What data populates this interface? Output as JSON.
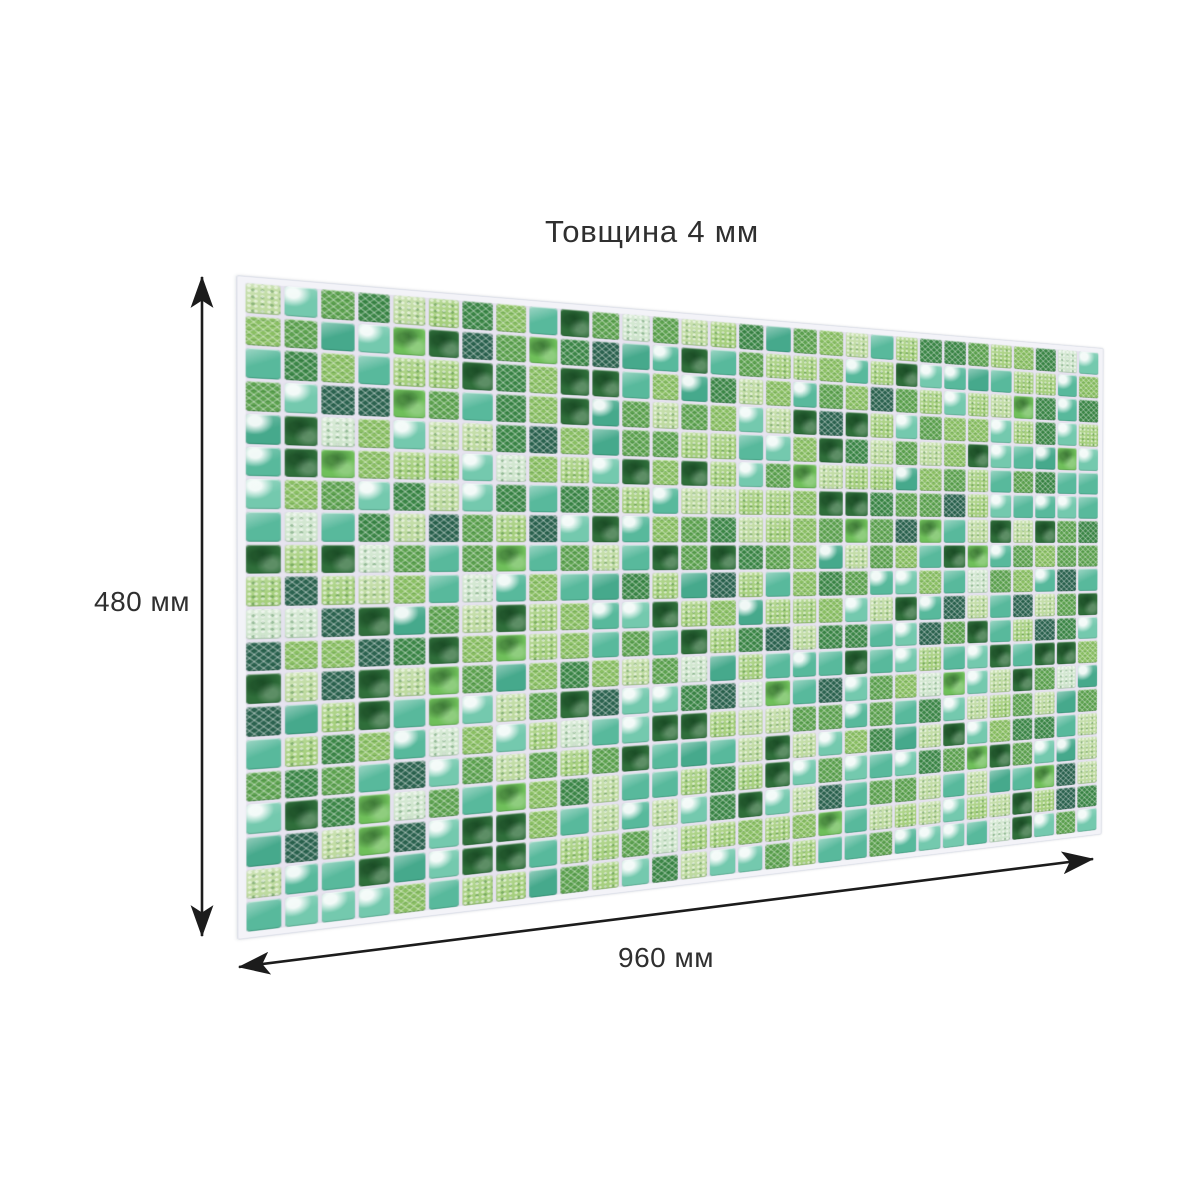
{
  "labels": {
    "thickness": "Товщина 4 мм",
    "height": "480 мм",
    "width": "960 мм"
  },
  "annotation": {
    "arrow_color": "#1c1c1c",
    "text_color": "#2f2f2f"
  },
  "panel": {
    "grid": {
      "cols": 30,
      "rows": 20
    },
    "seed": 20240407,
    "grout_color": "#e6e3ef",
    "substrate_color": "#f3f3f8",
    "palette": [
      {
        "name": "aqua-glass-light",
        "color": "#74c9ae",
        "pattern": "glare",
        "weight": 10
      },
      {
        "name": "aqua-glass",
        "color": "#58b99c",
        "pattern": "gloss",
        "weight": 12
      },
      {
        "name": "teal-glass-deep",
        "color": "#46a98c",
        "pattern": "gloss",
        "weight": 5
      },
      {
        "name": "lime-speckle",
        "color": "#a6cf7e",
        "pattern": "speckle",
        "weight": 14
      },
      {
        "name": "green-lattice",
        "color": "#8abf63",
        "pattern": "lattice",
        "weight": 12
      },
      {
        "name": "pale-lime",
        "color": "#bedaa0",
        "pattern": "speckle",
        "weight": 8
      },
      {
        "name": "grass-lattice",
        "color": "#5da24f",
        "pattern": "lattice",
        "weight": 10
      },
      {
        "name": "forest-lattice",
        "color": "#3c8747",
        "pattern": "lattice",
        "weight": 8
      },
      {
        "name": "dark-leaf",
        "color": "#2f6e3a",
        "pattern": "leaf",
        "weight": 8
      },
      {
        "name": "deep-teal",
        "color": "#2c6350",
        "pattern": "lattice",
        "weight": 5
      },
      {
        "name": "mint-pale",
        "color": "#cfe5cd",
        "pattern": "speckle",
        "weight": 5
      },
      {
        "name": "bright-leaf",
        "color": "#6fbf5a",
        "pattern": "leaf",
        "weight": 3
      }
    ]
  }
}
